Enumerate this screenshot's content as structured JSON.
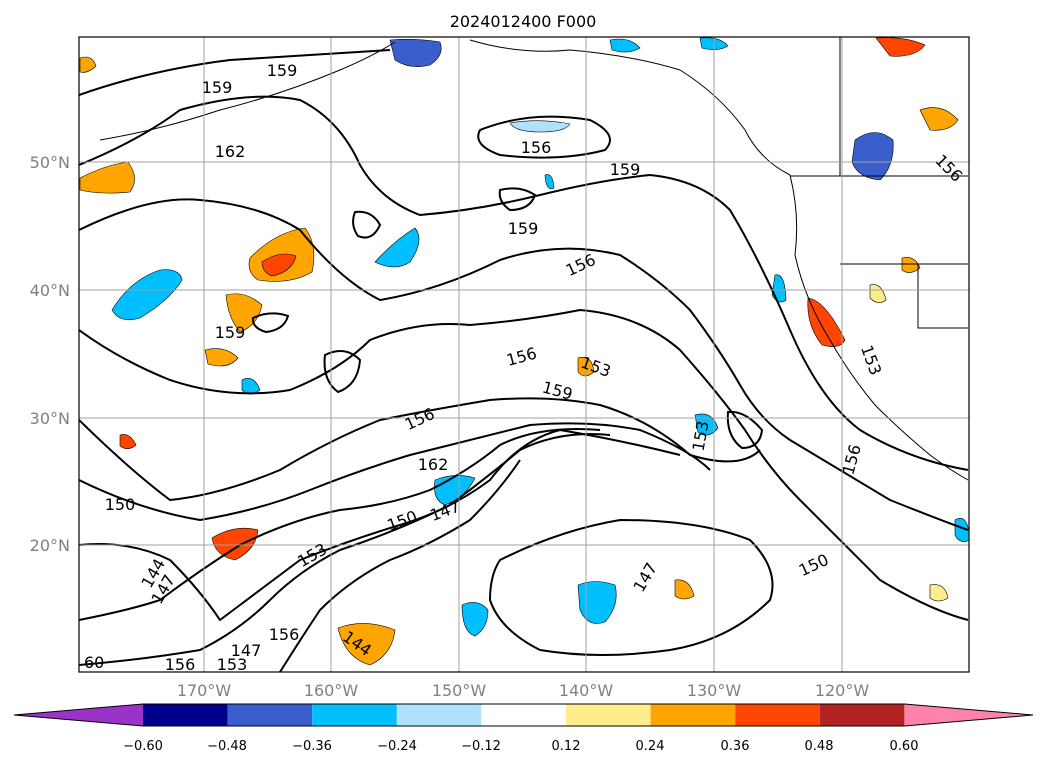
{
  "title": "2024012400 F000",
  "lat_labels": [
    "50°N",
    "40°N",
    "30°N",
    "20°N"
  ],
  "lon_labels": [
    "170°W",
    "160°W",
    "150°W",
    "140°W",
    "130°W",
    "120°W"
  ],
  "contour_labels": [
    "159",
    "159",
    "162",
    "156",
    "159",
    "159",
    "156",
    "159",
    "156",
    "153",
    "159",
    "156",
    "153",
    "162",
    "156",
    "150",
    "147",
    "153",
    "144",
    "147",
    "156",
    "144",
    "147",
    "150",
    "156",
    "153",
    "147",
    "156",
    "153",
    "150",
    "60"
  ],
  "colorbar": {
    "ticks": [
      "−0.60",
      "−0.48",
      "−0.36",
      "−0.24",
      "−0.12",
      "0.12",
      "0.24",
      "0.36",
      "0.48",
      "0.60"
    ],
    "colors": [
      "#9a34c8",
      "#00008b",
      "#3a5fcd",
      "#00bfff",
      "#b0e2ff",
      "#ffffff",
      "#ffec8b",
      "#ffa500",
      "#ff4500",
      "#b22222",
      "#ff82ab"
    ]
  },
  "colors": {
    "grid": "#a0a0a0",
    "contour": "#000000",
    "coast": "#000000"
  }
}
